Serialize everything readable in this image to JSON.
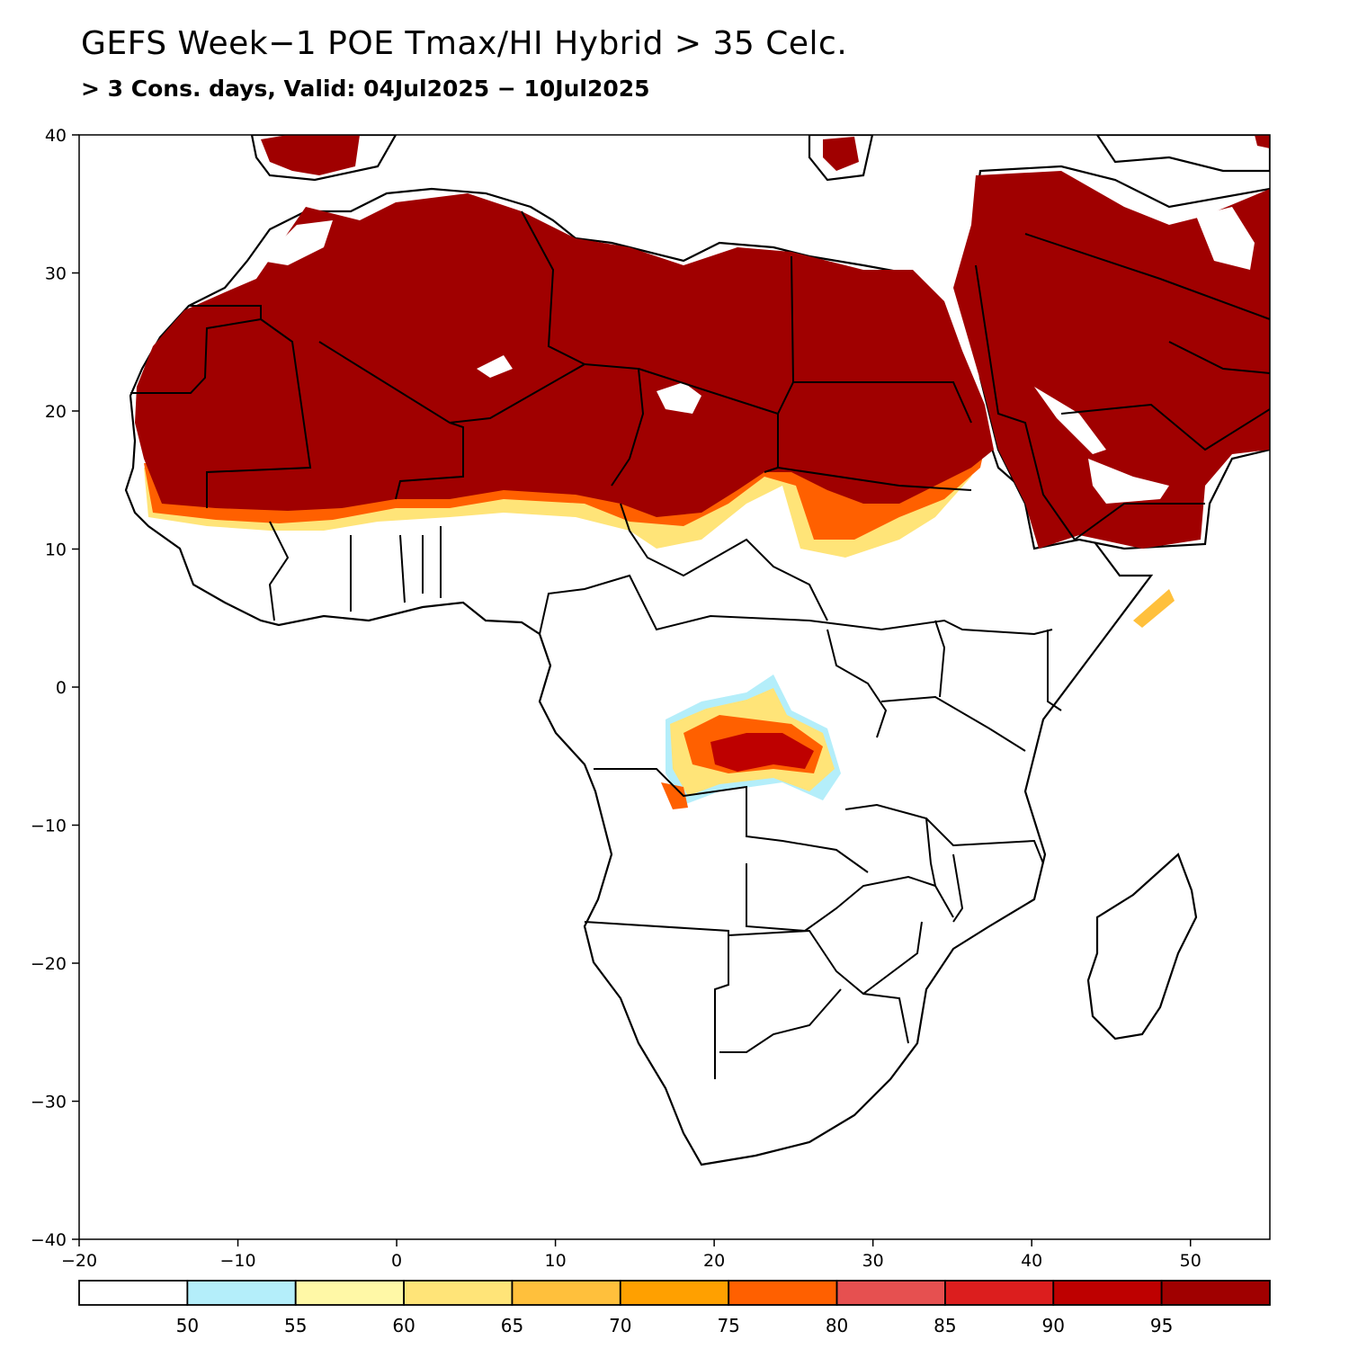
{
  "title": "GEFS Week−1 POE Tmax/HI Hybrid > 35 Celc.",
  "subtitle": "> 3 Cons. days, Valid: 04Jul2025 − 10Jul2025",
  "map": {
    "lon_range": [
      -20,
      55
    ],
    "lat_range": [
      -40,
      40
    ],
    "lon_ticks": [
      {
        "value": -20,
        "label": "−20"
      },
      {
        "value": -10,
        "label": "−10"
      },
      {
        "value": 0,
        "label": "0"
      },
      {
        "value": 10,
        "label": "10"
      },
      {
        "value": 20,
        "label": "20"
      },
      {
        "value": 30,
        "label": "30"
      },
      {
        "value": 40,
        "label": "40"
      },
      {
        "value": 50,
        "label": "50"
      }
    ],
    "lat_ticks": [
      {
        "value": 40,
        "label": "40"
      },
      {
        "value": 30,
        "label": "30"
      },
      {
        "value": 20,
        "label": "20"
      },
      {
        "value": 10,
        "label": "10"
      },
      {
        "value": 0,
        "label": "0"
      },
      {
        "value": -10,
        "label": "−10"
      },
      {
        "value": -20,
        "label": "−20"
      },
      {
        "value": -30,
        "label": "−30"
      },
      {
        "value": -40,
        "label": "−40"
      }
    ],
    "land_color": "#ffffff",
    "outline_color": "#000000",
    "max_fill_color": "#a00000"
  },
  "colorbar": {
    "colors": [
      "#ffffff",
      "#b4eefa",
      "#fff8a6",
      "#ffe478",
      "#ffc03c",
      "#ffa000",
      "#ff6000",
      "#e65050",
      "#dc1e1e",
      "#be0000",
      "#a00000"
    ],
    "labels": [
      "50",
      "55",
      "60",
      "65",
      "70",
      "75",
      "80",
      "85",
      "90",
      "95"
    ]
  }
}
